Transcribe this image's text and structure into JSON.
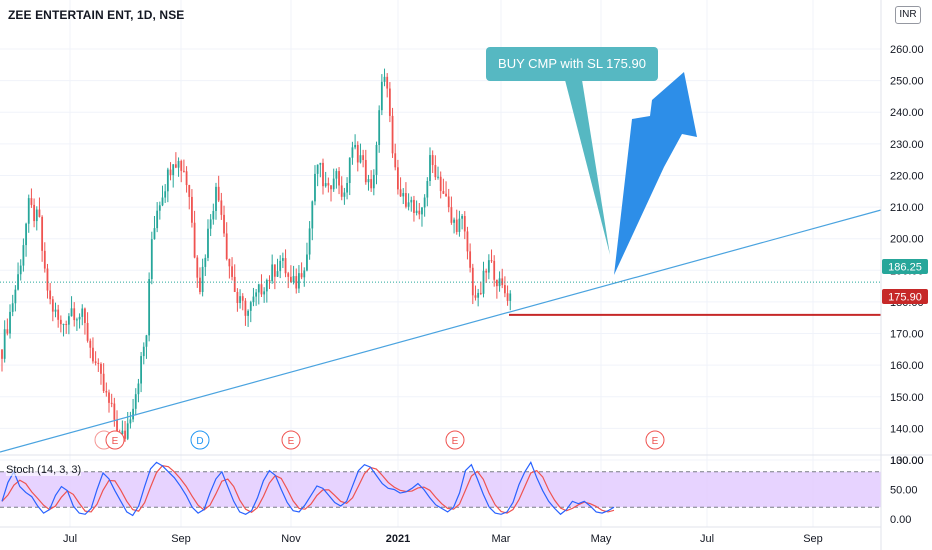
{
  "header": {
    "title": "ZEE ENTERTAIN ENT, 1D, NSE",
    "currency": "INR"
  },
  "annotation": {
    "callout_text": "BUY CMP with SL 175.90"
  },
  "indicator": {
    "label": "Stoch (14, 3, 3)"
  },
  "colors": {
    "up": "#26a69a",
    "down": "#ef5350",
    "trend": "#4aa3df",
    "support": "#c62828",
    "arrow": "#2d8ee8",
    "callout": "#56b8c2",
    "stoch_k": "#2962ff",
    "stoch_d": "#ef5350",
    "stoch_band": "#e1c8ff"
  },
  "chart_data": {
    "type": "candlestick",
    "price_axis": {
      "ticks": [
        "260.00",
        "250.00",
        "240.00",
        "230.00",
        "220.00",
        "210.00",
        "200.00",
        "190.00",
        "180.00",
        "170.00",
        "160.00",
        "150.00",
        "140.00",
        "130.00"
      ],
      "range": [
        125,
        265
      ]
    },
    "x_axis": {
      "ticks": [
        "Jul",
        "Sep",
        "Nov",
        "2021",
        "Mar",
        "May",
        "Jul",
        "Sep"
      ]
    },
    "last_price": "186.25",
    "stop_loss": "175.90",
    "price_path": [
      [
        0,
        165
      ],
      [
        3,
        188
      ],
      [
        5,
        210
      ],
      [
        7,
        205
      ],
      [
        8,
        188
      ],
      [
        9,
        180
      ],
      [
        11,
        172
      ],
      [
        13,
        178
      ],
      [
        15,
        175
      ],
      [
        17,
        163
      ],
      [
        19,
        152
      ],
      [
        21,
        143
      ],
      [
        22,
        137
      ],
      [
        23,
        138
      ],
      [
        25,
        152
      ],
      [
        27,
        170
      ],
      [
        28,
        200
      ],
      [
        29,
        210
      ],
      [
        31,
        220
      ],
      [
        32,
        226
      ],
      [
        34,
        222
      ],
      [
        35,
        214
      ],
      [
        36,
        196
      ],
      [
        37,
        185
      ],
      [
        38,
        196
      ],
      [
        39,
        208
      ],
      [
        40,
        215
      ],
      [
        41,
        210
      ],
      [
        42,
        196
      ],
      [
        43,
        188
      ],
      [
        44,
        180
      ],
      [
        46,
        177
      ],
      [
        48,
        183
      ],
      [
        49,
        186
      ],
      [
        50,
        188
      ],
      [
        52,
        193
      ],
      [
        53,
        190
      ],
      [
        54,
        185
      ],
      [
        55,
        186
      ],
      [
        57,
        195
      ],
      [
        58,
        212
      ],
      [
        59,
        224
      ],
      [
        60,
        218
      ],
      [
        61,
        214
      ],
      [
        62,
        222
      ],
      [
        63,
        218
      ],
      [
        64,
        212
      ],
      [
        65,
        226
      ],
      [
        66,
        228
      ],
      [
        67,
        226
      ],
      [
        68,
        220
      ],
      [
        69,
        214
      ],
      [
        70,
        230
      ],
      [
        71,
        248
      ],
      [
        72,
        250
      ],
      [
        73,
        225
      ],
      [
        74,
        215
      ],
      [
        75,
        212
      ],
      [
        76,
        214
      ],
      [
        77,
        208
      ],
      [
        78,
        205
      ],
      [
        80,
        224
      ],
      [
        81,
        222
      ],
      [
        82,
        217
      ],
      [
        83,
        212
      ],
      [
        84,
        205
      ],
      [
        86,
        205
      ],
      [
        87,
        196
      ],
      [
        88,
        184
      ],
      [
        89,
        180
      ],
      [
        90,
        187
      ],
      [
        91,
        192
      ],
      [
        92,
        190
      ],
      [
        93,
        185
      ],
      [
        94,
        183
      ],
      [
        95,
        182
      ]
    ],
    "events": [
      {
        "label": "E",
        "bar": 19
      },
      {
        "label": "D",
        "bar": 34
      },
      {
        "label": "E",
        "bar": 49
      },
      {
        "label": "E",
        "bar": 76
      },
      {
        "label": "E",
        "bar": 110
      }
    ],
    "stochastic": {
      "axis_ticks": [
        "100.00",
        "50.00",
        "0.00"
      ],
      "bands": [
        20,
        80
      ],
      "k": [
        30,
        62,
        80,
        55,
        45,
        38,
        22,
        10,
        16,
        40,
        55,
        48,
        22,
        10,
        8,
        18,
        50,
        78,
        68,
        48,
        30,
        12,
        6,
        22,
        55,
        85,
        96,
        90,
        80,
        70,
        56,
        40,
        20,
        10,
        16,
        44,
        68,
        80,
        55,
        30,
        12,
        8,
        14,
        36,
        65,
        82,
        74,
        50,
        28,
        14,
        12,
        24,
        40,
        56,
        52,
        40,
        28,
        22,
        30,
        56,
        82,
        92,
        88,
        74,
        60,
        52,
        50,
        44,
        46,
        52,
        60,
        50,
        36,
        24,
        18,
        12,
        20,
        44,
        82,
        92,
        68,
        42,
        20,
        10,
        8,
        12,
        28,
        58,
        80,
        96,
        70,
        48,
        30,
        18,
        8,
        16,
        30,
        26,
        30,
        22,
        12,
        10,
        14,
        20
      ]
    }
  }
}
